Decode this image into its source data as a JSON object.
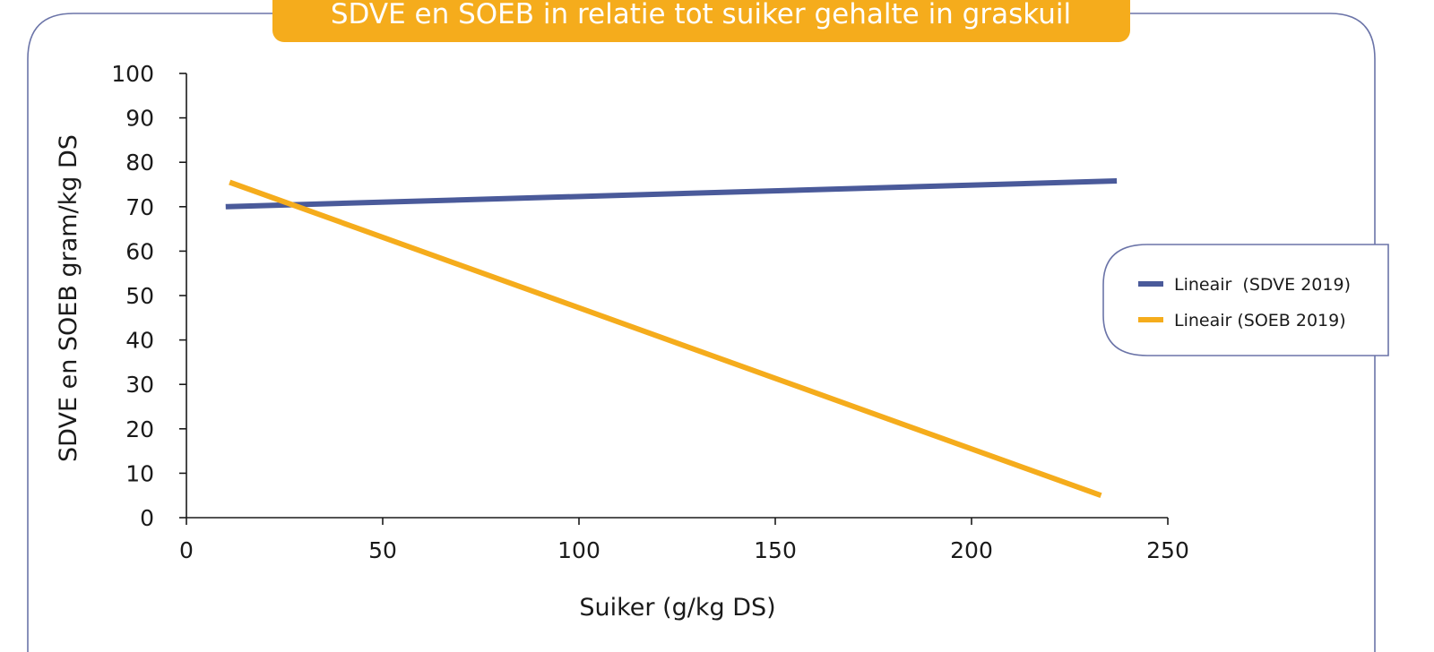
{
  "chart_data": {
    "type": "line",
    "title": "SDVE en SOEB in relatie tot suiker gehalte in graskuil",
    "xlabel": "Suiker (g/kg DS)",
    "ylabel": "SDVE en SOEB gram/kg DS",
    "xlim": [
      0,
      250
    ],
    "ylim": [
      0,
      100
    ],
    "xticks": [
      "0",
      "50",
      "100",
      "150",
      "200",
      "250"
    ],
    "yticks": [
      "0",
      "10",
      "20",
      "30",
      "40",
      "50",
      "60",
      "70",
      "80",
      "90",
      "100"
    ],
    "grid": false,
    "legend_position": "right",
    "series": [
      {
        "name": "Lineair  (SDVE 2019)",
        "color": "#4a5a9a",
        "x": [
          10,
          237
        ],
        "y": [
          70,
          75.8
        ]
      },
      {
        "name": "Lineair (SOEB 2019)",
        "color": "#f5ac1c",
        "x": [
          11,
          233
        ],
        "y": [
          75.5,
          5
        ]
      }
    ]
  },
  "colors": {
    "frame": "#6b74a8",
    "title_bg": "#f5ac1c",
    "axis": "#1a1a1a"
  }
}
